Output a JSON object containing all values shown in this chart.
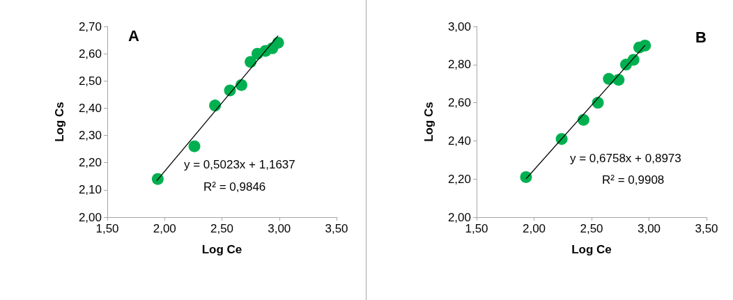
{
  "chart_data": [
    {
      "type": "scatter",
      "xlabel": "Log Ce",
      "ylabel": "Log Cs",
      "annotations": [
        "A",
        "y = 0,5023x + 1,1637",
        "R² = 0,9846"
      ],
      "marker": "circle",
      "grid": false,
      "xlim": [
        1.5,
        3.5
      ],
      "ylim": [
        2.0,
        2.7
      ],
      "xticks": [
        {
          "value": 1.5,
          "label": "1,50"
        },
        {
          "value": 2.0,
          "label": "2,00"
        },
        {
          "value": 2.5,
          "label": "2,50"
        },
        {
          "value": 3.0,
          "label": "3,00"
        },
        {
          "value": 3.5,
          "label": "3,50"
        }
      ],
      "yticks": [
        {
          "value": 2.0,
          "label": "2,00"
        },
        {
          "value": 2.1,
          "label": "2,10"
        },
        {
          "value": 2.2,
          "label": "2,20"
        },
        {
          "value": 2.3,
          "label": "2,30"
        },
        {
          "value": 2.4,
          "label": "2,40"
        },
        {
          "value": 2.5,
          "label": "2,50"
        },
        {
          "value": 2.6,
          "label": "2,60"
        },
        {
          "value": 2.7,
          "label": "2,70"
        }
      ],
      "series": [
        {
          "color": "#00b050",
          "x": [
            1.94,
            2.26,
            2.44,
            2.57,
            2.67,
            2.75,
            2.81,
            2.88,
            2.94,
            2.99
          ],
          "values": [
            2.14,
            2.26,
            2.41,
            2.465,
            2.485,
            2.57,
            2.6,
            2.61,
            2.62,
            2.64
          ]
        },
        {
          "type": "line",
          "marker": "none",
          "color": "#000000",
          "x": [
            1.93,
            2.99
          ],
          "values": [
            2.133,
            2.666
          ]
        }
      ]
    },
    {
      "type": "scatter",
      "xlabel": "Log Ce",
      "ylabel": "Log Cs",
      "annotations": [
        "B",
        "y = 0,6758x + 0,8973",
        "R² = 0,9908"
      ],
      "marker": "circle",
      "grid": false,
      "xlim": [
        1.5,
        3.5
      ],
      "ylim": [
        2.0,
        3.0
      ],
      "xticks": [
        {
          "value": 1.5,
          "label": "1,50"
        },
        {
          "value": 2.0,
          "label": "2,00"
        },
        {
          "value": 2.5,
          "label": "2,50"
        },
        {
          "value": 3.0,
          "label": "3,00"
        },
        {
          "value": 3.5,
          "label": "3,50"
        }
      ],
      "yticks": [
        {
          "value": 2.0,
          "label": "2,00"
        },
        {
          "value": 2.2,
          "label": "2,20"
        },
        {
          "value": 2.4,
          "label": "2,40"
        },
        {
          "value": 2.6,
          "label": "2,60"
        },
        {
          "value": 2.8,
          "label": "2,80"
        },
        {
          "value": 3.0,
          "label": "3,00"
        }
      ],
      "series": [
        {
          "color": "#00b050",
          "x": [
            1.93,
            2.24,
            2.43,
            2.555,
            2.65,
            2.735,
            2.8,
            2.865,
            2.915,
            2.965
          ],
          "values": [
            2.21,
            2.41,
            2.51,
            2.6,
            2.725,
            2.72,
            2.8,
            2.825,
            2.89,
            2.9
          ]
        },
        {
          "type": "line",
          "marker": "none",
          "color": "#000000",
          "x": [
            1.93,
            2.965
          ],
          "values": [
            2.201,
            2.901
          ]
        }
      ]
    }
  ]
}
